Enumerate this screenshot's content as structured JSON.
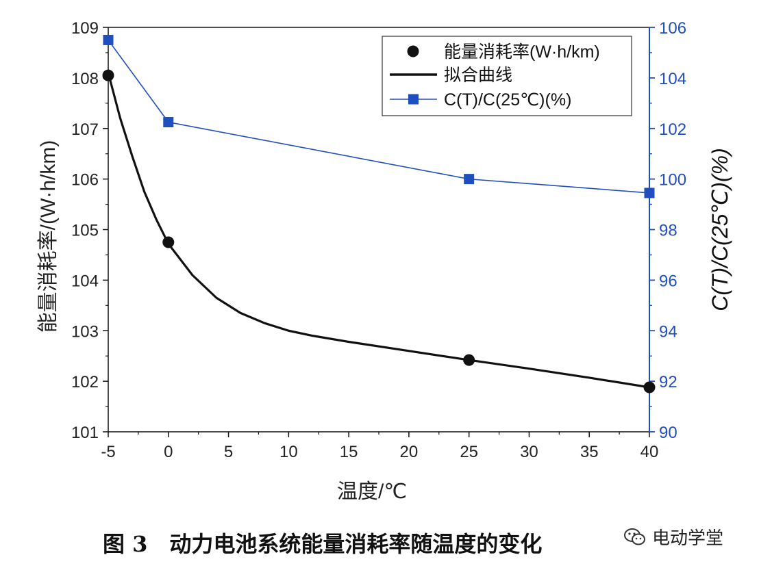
{
  "chart_data": {
    "type": "line",
    "x_axis": {
      "label": "温度/℃",
      "range": [
        -5,
        40
      ],
      "ticks": [
        "-5",
        "0",
        "5",
        "10",
        "15",
        "20",
        "25",
        "30",
        "35",
        "40"
      ]
    },
    "y_axis_left": {
      "label": "能量消耗率/(W·h/km)",
      "range": [
        101,
        109
      ],
      "ticks": [
        "101",
        "102",
        "103",
        "104",
        "105",
        "106",
        "107",
        "108",
        "109"
      ]
    },
    "y_axis_right": {
      "label": "C(T)/C(25℃)(%)",
      "range": [
        90,
        106
      ],
      "ticks": [
        "90",
        "92",
        "94",
        "96",
        "98",
        "100",
        "102",
        "104",
        "106"
      ],
      "color": "#1f4fbf"
    },
    "legend": {
      "placement": "top-right",
      "entries": [
        "能量消耗率(W·h/km)",
        "拟合曲线",
        "C(T)/C(25℃)(%)"
      ]
    },
    "series": [
      {
        "name": "能量消耗率(W·h/km)",
        "axis": "left",
        "style": "markers",
        "color": "#111111",
        "x": [
          -5,
          0,
          25,
          40
        ],
        "y": [
          108.05,
          104.75,
          102.42,
          101.88
        ]
      },
      {
        "name": "拟合曲线",
        "axis": "left",
        "style": "curve",
        "color": "#111111",
        "x": [
          -5,
          -4,
          -3,
          -2,
          -1,
          0,
          2,
          4,
          6,
          8,
          10,
          12,
          15,
          20,
          25,
          30,
          35,
          40
        ],
        "y": [
          108.1,
          107.2,
          106.45,
          105.75,
          105.2,
          104.72,
          104.1,
          103.65,
          103.35,
          103.15,
          103.0,
          102.9,
          102.78,
          102.6,
          102.42,
          102.25,
          102.07,
          101.88
        ]
      },
      {
        "name": "C(T)/C(25℃)(%)",
        "axis": "right",
        "style": "line-square",
        "color": "#1f4fbf",
        "x": [
          -5,
          0,
          25,
          40
        ],
        "y": [
          105.5,
          102.25,
          100.0,
          99.45
        ]
      }
    ]
  },
  "caption": "图 3　动力电池系统能量消耗率随温度的变化",
  "watermark": "电动学堂"
}
